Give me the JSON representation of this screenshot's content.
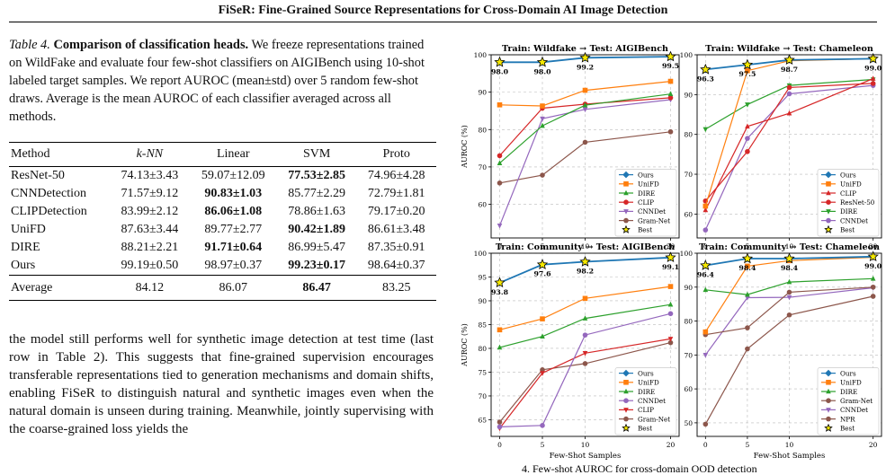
{
  "page_title": "FiSeR: Fine-Grained Source Representations for Cross-Domain AI Image Detection",
  "table4": {
    "label": "Table 4.",
    "title": "Comparison of classification heads.",
    "caption": "We freeze representations trained on WildFake and evaluate four few-shot classifiers on AIGIBench using 10-shot labeled target samples. We report AUROC (mean±std) over 5 random few-shot draws. Average is the mean AUROC of each classifier averaged across all methods.",
    "headers": [
      "Method",
      "k-NN",
      "Linear",
      "SVM",
      "Proto"
    ],
    "rows": [
      {
        "method": "ResNet-50",
        "cells": [
          "74.13±3.43",
          "59.07±12.09",
          "77.53±2.85",
          "74.96±4.28"
        ],
        "bold": [
          false,
          false,
          true,
          false
        ]
      },
      {
        "method": "CNNDetection",
        "cells": [
          "71.57±9.12",
          "90.83±1.03",
          "85.77±2.29",
          "72.79±1.81"
        ],
        "bold": [
          false,
          true,
          false,
          false
        ]
      },
      {
        "method": "CLIPDetection",
        "cells": [
          "83.99±2.12",
          "86.06±1.08",
          "78.86±1.63",
          "79.17±0.20"
        ],
        "bold": [
          false,
          true,
          false,
          false
        ]
      },
      {
        "method": "UniFD",
        "cells": [
          "87.63±3.44",
          "89.77±2.77",
          "90.42±1.89",
          "86.61±3.48"
        ],
        "bold": [
          false,
          false,
          true,
          false
        ]
      },
      {
        "method": "DIRE",
        "cells": [
          "88.21±2.21",
          "91.71±0.64",
          "86.99±5.47",
          "87.35±0.91"
        ],
        "bold": [
          false,
          true,
          false,
          false
        ]
      },
      {
        "method": "Ours",
        "cells": [
          "99.19±0.50",
          "98.97±0.37",
          "99.23±0.17",
          "98.64±0.37"
        ],
        "bold": [
          false,
          false,
          true,
          false
        ]
      }
    ],
    "average": {
      "method": "Average",
      "cells": [
        "84.12",
        "86.07",
        "86.47",
        "83.25"
      ],
      "bold": [
        false,
        false,
        true,
        false
      ]
    }
  },
  "body_text": "the model still performs well for synthetic image detection at test time (last row in Table 2). This suggests that fine-grained supervision encourages transferable representations tied to generation mechanisms and domain shifts, enabling FiSeR to distinguish natural and synthetic images even when the natural domain is unseen during training. Meanwhile, jointly supervising with the coarse-grained loss yields the",
  "figure_caption_partial": "4. Few-shot AUROC for cross-domain OOD detection",
  "colors": {
    "Ours": "#1f77b4",
    "UniFD": "#ff7f0e",
    "DIRE": "#2ca02c",
    "CLIP": "#d62728",
    "ResNet-50": "#d62728",
    "CNNDet": "#9467bd",
    "Gram-Net": "#8c564b",
    "NPR": "#8c564b",
    "Best": "#f5e800"
  },
  "chart_data": [
    {
      "type": "line",
      "title": "Train: Wildfake → Test: AIGIBench",
      "x": [
        0,
        5,
        10,
        20
      ],
      "xticks": [
        "0",
        "5",
        "10",
        "20"
      ],
      "yticks": [
        "60",
        "70",
        "80",
        "90",
        "100"
      ],
      "ylim": [
        51,
        100
      ],
      "ylabel": "AUROC (%)",
      "xlabel": "",
      "legend": "bottom-right",
      "grid": true,
      "series": [
        {
          "name": "Ours",
          "values": [
            98.0,
            98.0,
            99.2,
            99.5
          ],
          "marker": "diamond"
        },
        {
          "name": "UniFD",
          "values": [
            86.6,
            86.3,
            90.5,
            92.9
          ],
          "marker": "square"
        },
        {
          "name": "DIRE",
          "values": [
            71.0,
            81.0,
            86.5,
            89.5
          ],
          "marker": "triangle"
        },
        {
          "name": "CLIP",
          "values": [
            73.0,
            85.7,
            86.8,
            88.5
          ],
          "marker": "circle"
        },
        {
          "name": "CNNDet",
          "values": [
            54.3,
            82.9,
            85.4,
            88.0
          ],
          "marker": "triangle-down"
        },
        {
          "name": "Gram-Net",
          "values": [
            65.7,
            67.8,
            76.6,
            79.4
          ],
          "marker": "circle"
        }
      ],
      "best": {
        "name": "Best",
        "values": [
          98.0,
          98.0,
          99.2,
          99.5
        ],
        "labels": [
          "98.0",
          "98.0",
          "99.2",
          "99.5"
        ]
      }
    },
    {
      "type": "line",
      "title": "Train: Wildfake → Test: Chameleon",
      "x": [
        0,
        5,
        10,
        20
      ],
      "xticks": [
        "0",
        "5",
        "10",
        "20"
      ],
      "yticks": [
        "60",
        "70",
        "80",
        "90",
        "100"
      ],
      "ylim": [
        54,
        100
      ],
      "ylabel": "",
      "xlabel": "",
      "legend": "bottom-right",
      "grid": true,
      "series": [
        {
          "name": "Ours",
          "values": [
            96.3,
            97.5,
            98.7,
            99.0
          ],
          "marker": "diamond"
        },
        {
          "name": "UniFD",
          "values": [
            62.0,
            96.0,
            98.5,
            99.0
          ],
          "marker": "square"
        },
        {
          "name": "CLIP",
          "values": [
            61.0,
            82.0,
            85.3,
            94.0
          ],
          "marker": "triangle"
        },
        {
          "name": "ResNet-50",
          "values": [
            63.3,
            75.7,
            91.8,
            92.8
          ],
          "marker": "circle"
        },
        {
          "name": "DIRE",
          "values": [
            81.3,
            87.5,
            92.3,
            93.8
          ],
          "marker": "triangle-down"
        },
        {
          "name": "CNNDet",
          "values": [
            56.0,
            79.0,
            90.2,
            92.3
          ],
          "marker": "circle"
        }
      ],
      "best": {
        "name": "Best",
        "values": [
          96.3,
          97.5,
          98.7,
          99.0
        ],
        "labels": [
          "96.3",
          "97.5",
          "98.7",
          "99.0"
        ]
      }
    },
    {
      "type": "line",
      "title": "Train: Community → Test: AIGIBench",
      "x": [
        0,
        5,
        10,
        20
      ],
      "xticks": [
        "0",
        "5",
        "10",
        "20"
      ],
      "yticks": [
        "65",
        "70",
        "75",
        "80",
        "85",
        "90",
        "95",
        "100"
      ],
      "ylim": [
        61.5,
        100
      ],
      "ylabel": "AUROC (%)",
      "xlabel": "Few-Shot Samples",
      "legend": "bottom-right",
      "grid": true,
      "series": [
        {
          "name": "Ours",
          "values": [
            93.8,
            97.6,
            98.2,
            99.1
          ],
          "marker": "diamond"
        },
        {
          "name": "UniFD",
          "values": [
            83.9,
            86.2,
            90.5,
            93.0
          ],
          "marker": "square"
        },
        {
          "name": "DIRE",
          "values": [
            80.2,
            82.5,
            86.3,
            89.2
          ],
          "marker": "triangle"
        },
        {
          "name": "CNNDet",
          "values": [
            63.5,
            63.8,
            82.8,
            87.3
          ],
          "marker": "circle"
        },
        {
          "name": "CLIP",
          "values": [
            63.2,
            74.8,
            79.0,
            82.0
          ],
          "marker": "triangle-down"
        },
        {
          "name": "Gram-Net",
          "values": [
            64.5,
            75.5,
            76.8,
            81.2
          ],
          "marker": "circle"
        }
      ],
      "best": {
        "name": "Best",
        "values": [
          93.8,
          97.6,
          98.2,
          99.1
        ],
        "labels": [
          "93.8",
          "97.6",
          "98.2",
          "99.1"
        ]
      }
    },
    {
      "type": "line",
      "title": "Train: Community → Test: Chameleon",
      "x": [
        0,
        5,
        10,
        20
      ],
      "xticks": [
        "0",
        "5",
        "10",
        "20"
      ],
      "yticks": [
        "50",
        "60",
        "70",
        "80",
        "90",
        "100"
      ],
      "ylim": [
        46,
        100
      ],
      "ylabel": "",
      "xlabel": "Few-Shot Samples",
      "legend": "bottom-right",
      "grid": true,
      "series": [
        {
          "name": "Ours",
          "values": [
            96.4,
            98.4,
            98.4,
            99.0
          ],
          "marker": "diamond"
        },
        {
          "name": "UniFD",
          "values": [
            76.8,
            96.2,
            97.8,
            98.8
          ],
          "marker": "square"
        },
        {
          "name": "DIRE",
          "values": [
            89.2,
            87.8,
            91.5,
            92.5
          ],
          "marker": "triangle"
        },
        {
          "name": "Gram-Net",
          "values": [
            76.0,
            78.0,
            88.5,
            90.0
          ],
          "marker": "circle"
        },
        {
          "name": "CNNDet",
          "values": [
            70.0,
            86.9,
            87.0,
            89.8
          ],
          "marker": "triangle-down"
        },
        {
          "name": "NPR",
          "values": [
            49.6,
            71.8,
            81.8,
            87.3
          ],
          "marker": "circle"
        }
      ],
      "best": {
        "name": "Best",
        "values": [
          96.4,
          98.4,
          98.4,
          99.0
        ],
        "labels": [
          "96.4",
          "98.4",
          "98.4",
          "99.0"
        ]
      }
    }
  ]
}
